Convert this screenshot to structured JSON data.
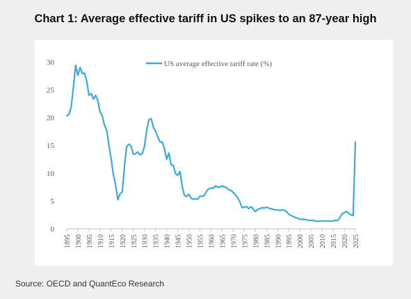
{
  "title": "Chart 1: Average effective tariff in US spikes to an 87-year high",
  "source": "Source: OECD and QuantEco Research",
  "chart_data": {
    "type": "line",
    "title": "Chart 1: Average effective tariff in US spikes to an 87-year high",
    "xlabel": "",
    "ylabel": "",
    "xlim": [
      1895,
      2025
    ],
    "ylim": [
      0,
      30
    ],
    "yticks": [
      0,
      5,
      10,
      15,
      20,
      25,
      30
    ],
    "xticks": [
      1895,
      1900,
      1905,
      1910,
      1915,
      1920,
      1925,
      1930,
      1935,
      1940,
      1945,
      1950,
      1955,
      1960,
      1965,
      1970,
      1975,
      1980,
      1985,
      1990,
      1995,
      2000,
      2005,
      2010,
      2015,
      2020,
      2025
    ],
    "grid": false,
    "legend": "top-center",
    "series": [
      {
        "name": "US average effective tariff rate (%)",
        "color": "#3aa9dc",
        "points": [
          [
            1895,
            20.3
          ],
          [
            1896,
            20.6
          ],
          [
            1897,
            21.9
          ],
          [
            1898,
            25.5
          ],
          [
            1899,
            29.4
          ],
          [
            1900,
            27.6
          ],
          [
            1901,
            29.0
          ],
          [
            1902,
            27.9
          ],
          [
            1903,
            28.0
          ],
          [
            1904,
            26.5
          ],
          [
            1905,
            24.0
          ],
          [
            1906,
            24.3
          ],
          [
            1907,
            23.3
          ],
          [
            1908,
            24.0
          ],
          [
            1909,
            23.0
          ],
          [
            1910,
            21.0
          ],
          [
            1911,
            20.3
          ],
          [
            1912,
            18.6
          ],
          [
            1913,
            17.7
          ],
          [
            1914,
            15.0
          ],
          [
            1915,
            12.5
          ],
          [
            1916,
            9.7
          ],
          [
            1917,
            7.9
          ],
          [
            1918,
            5.2
          ],
          [
            1919,
            6.3
          ],
          [
            1920,
            6.6
          ],
          [
            1921,
            11.4
          ],
          [
            1922,
            14.8
          ],
          [
            1923,
            15.2
          ],
          [
            1924,
            14.8
          ],
          [
            1925,
            13.4
          ],
          [
            1926,
            13.5
          ],
          [
            1927,
            13.8
          ],
          [
            1928,
            13.3
          ],
          [
            1929,
            13.5
          ],
          [
            1930,
            14.8
          ],
          [
            1931,
            17.7
          ],
          [
            1932,
            19.6
          ],
          [
            1933,
            19.8
          ],
          [
            1934,
            18.3
          ],
          [
            1935,
            17.5
          ],
          [
            1936,
            16.5
          ],
          [
            1937,
            15.6
          ],
          [
            1938,
            15.6
          ],
          [
            1939,
            14.4
          ],
          [
            1940,
            12.5
          ],
          [
            1941,
            13.6
          ],
          [
            1942,
            11.5
          ],
          [
            1943,
            11.4
          ],
          [
            1944,
            9.9
          ],
          [
            1945,
            9.6
          ],
          [
            1946,
            10.3
          ],
          [
            1947,
            7.6
          ],
          [
            1948,
            6.0
          ],
          [
            1949,
            5.8
          ],
          [
            1950,
            6.2
          ],
          [
            1951,
            5.5
          ],
          [
            1952,
            5.3
          ],
          [
            1953,
            5.4
          ],
          [
            1954,
            5.3
          ],
          [
            1955,
            5.9
          ],
          [
            1956,
            5.8
          ],
          [
            1957,
            6.0
          ],
          [
            1958,
            6.8
          ],
          [
            1959,
            7.2
          ],
          [
            1960,
            7.3
          ],
          [
            1961,
            7.3
          ],
          [
            1962,
            7.7
          ],
          [
            1963,
            7.5
          ],
          [
            1964,
            7.5
          ],
          [
            1965,
            7.7
          ],
          [
            1966,
            7.5
          ],
          [
            1967,
            7.4
          ],
          [
            1968,
            7.0
          ],
          [
            1969,
            6.9
          ],
          [
            1970,
            6.5
          ],
          [
            1971,
            6.1
          ],
          [
            1972,
            5.6
          ],
          [
            1973,
            4.8
          ],
          [
            1974,
            3.8
          ],
          [
            1975,
            3.9
          ],
          [
            1976,
            4.0
          ],
          [
            1977,
            3.6
          ],
          [
            1978,
            4.0
          ],
          [
            1979,
            3.5
          ],
          [
            1980,
            3.1
          ],
          [
            1981,
            3.5
          ],
          [
            1982,
            3.6
          ],
          [
            1983,
            3.8
          ],
          [
            1984,
            3.7
          ],
          [
            1985,
            3.9
          ],
          [
            1986,
            3.7
          ],
          [
            1987,
            3.6
          ],
          [
            1988,
            3.5
          ],
          [
            1989,
            3.4
          ],
          [
            1990,
            3.4
          ],
          [
            1991,
            3.3
          ],
          [
            1992,
            3.4
          ],
          [
            1993,
            3.3
          ],
          [
            1994,
            3.1
          ],
          [
            1995,
            2.6
          ],
          [
            1996,
            2.4
          ],
          [
            1997,
            2.2
          ],
          [
            1998,
            2.0
          ],
          [
            1999,
            1.9
          ],
          [
            2000,
            1.7
          ],
          [
            2001,
            1.7
          ],
          [
            2002,
            1.7
          ],
          [
            2003,
            1.6
          ],
          [
            2004,
            1.5
          ],
          [
            2005,
            1.5
          ],
          [
            2006,
            1.5
          ],
          [
            2007,
            1.4
          ],
          [
            2008,
            1.3
          ],
          [
            2009,
            1.4
          ],
          [
            2010,
            1.4
          ],
          [
            2011,
            1.4
          ],
          [
            2012,
            1.4
          ],
          [
            2013,
            1.4
          ],
          [
            2014,
            1.4
          ],
          [
            2015,
            1.4
          ],
          [
            2016,
            1.5
          ],
          [
            2017,
            1.5
          ],
          [
            2018,
            2.0
          ],
          [
            2019,
            2.7
          ],
          [
            2020,
            2.9
          ],
          [
            2021,
            3.1
          ],
          [
            2022,
            2.8
          ],
          [
            2023,
            2.5
          ],
          [
            2024,
            2.4
          ],
          [
            2025,
            15.6
          ]
        ]
      }
    ]
  }
}
